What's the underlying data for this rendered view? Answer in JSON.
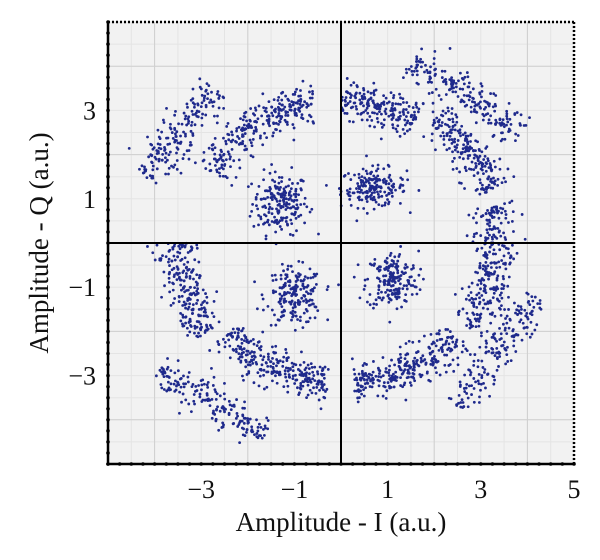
{
  "chart_data": {
    "type": "scatter",
    "title": "",
    "xlabel": "Amplitude - I (a.u.)",
    "ylabel": "Amplitude - Q (a.u.)",
    "xlim": [
      -5,
      5
    ],
    "ylim": [
      -5,
      5
    ],
    "xticks": [
      -3,
      -1,
      1,
      3,
      5
    ],
    "yticks": [
      3,
      1,
      -1,
      -3
    ],
    "xtick_labels": [
      "−3",
      "−1",
      "1",
      "3",
      "5"
    ],
    "ytick_labels": [
      "3",
      "1",
      "−1",
      "−3"
    ],
    "grid": true,
    "legend": "none",
    "point_color": "#1f2a8c",
    "series": [
      {
        "clusters": [
          {
            "shape": "blob",
            "cx": -1.3,
            "cy": 0.9,
            "sx": 0.3,
            "sy": 0.35,
            "n": 200
          },
          {
            "shape": "blob",
            "cx": 0.7,
            "cy": 1.25,
            "sx": 0.35,
            "sy": 0.22,
            "n": 180
          },
          {
            "shape": "blob",
            "cx": -1.0,
            "cy": -1.2,
            "sx": 0.3,
            "sy": 0.32,
            "n": 190
          },
          {
            "shape": "blob",
            "cx": 1.1,
            "cy": -0.85,
            "sx": 0.28,
            "sy": 0.33,
            "n": 190
          },
          {
            "shape": "arc",
            "cx": 0.0,
            "cy": 0.0,
            "r": 3.25,
            "t0": 100,
            "t1": 150,
            "w": 0.22,
            "n": 280
          },
          {
            "shape": "arc",
            "cx": 0.0,
            "cy": 0.0,
            "r": 3.2,
            "t0": 60,
            "t1": 90,
            "w": 0.22,
            "n": 200
          },
          {
            "shape": "arc",
            "cx": 0.0,
            "cy": 0.0,
            "r": 3.45,
            "t0": 20,
            "t1": 55,
            "w": 0.22,
            "n": 220
          },
          {
            "shape": "arc",
            "cx": 0.0,
            "cy": 0.0,
            "r": 3.3,
            "t0": -35,
            "t1": 15,
            "w": 0.22,
            "n": 280
          },
          {
            "shape": "arc",
            "cx": 0.0,
            "cy": 0.0,
            "r": 3.2,
            "t0": -85,
            "t1": -40,
            "w": 0.22,
            "n": 280
          },
          {
            "shape": "arc",
            "cx": 0.0,
            "cy": 0.0,
            "r": 3.2,
            "t0": -140,
            "t1": -95,
            "w": 0.22,
            "n": 280
          },
          {
            "shape": "arc",
            "cx": 0.0,
            "cy": 0.0,
            "r": 3.5,
            "t0": -180,
            "t1": -145,
            "w": 0.22,
            "n": 230
          },
          {
            "shape": "line",
            "x0": -4.2,
            "y0": 1.5,
            "x1": -2.7,
            "y1": 3.5,
            "w": 0.2,
            "n": 180
          },
          {
            "shape": "line",
            "x0": 1.5,
            "y0": 4.1,
            "x1": 3.9,
            "y1": 2.5,
            "w": 0.2,
            "n": 200
          },
          {
            "shape": "line",
            "x0": 2.5,
            "y0": -3.7,
            "x1": 4.2,
            "y1": -1.2,
            "w": 0.2,
            "n": 180
          },
          {
            "shape": "line",
            "x0": -3.9,
            "y0": -2.9,
            "x1": -1.6,
            "y1": -4.3,
            "w": 0.2,
            "n": 190
          }
        ]
      }
    ]
  }
}
